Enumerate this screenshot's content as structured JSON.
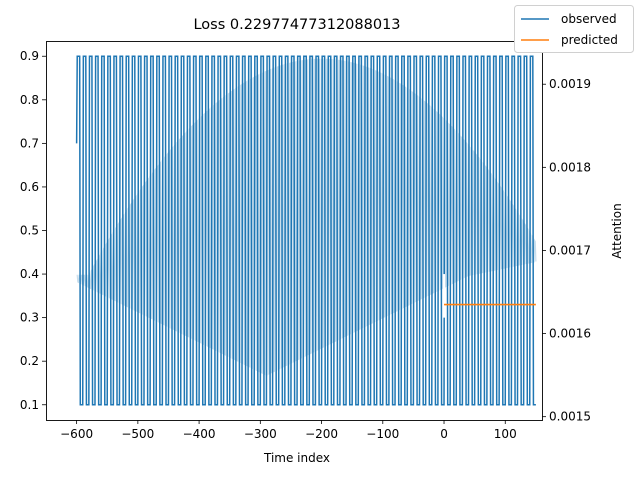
{
  "chart_data": {
    "type": "line",
    "title": "Loss 0.22977477312088013",
    "xlabel": "Time index",
    "ylabel": "",
    "y2label": "Attention",
    "xlim": [
      -650,
      160
    ],
    "ylim": [
      0.065,
      0.935
    ],
    "y2lim": [
      0.001496,
      0.001952
    ],
    "xticks": [
      -600,
      -500,
      -400,
      -300,
      -200,
      -100,
      0,
      100
    ],
    "yticks": [
      0.1,
      0.2,
      0.3,
      0.4,
      0.5,
      0.6,
      0.7,
      0.8,
      0.9
    ],
    "y2ticks": [
      0.0015,
      0.0016,
      0.0017,
      0.0018,
      0.0019
    ],
    "y2tick_labels": [
      "0.0015",
      "0.0016",
      "0.0017",
      "0.0018",
      "0.0019"
    ],
    "grid": false,
    "legend_position": "top-right",
    "series": [
      {
        "name": "observed",
        "color": "#1f77b4",
        "pattern": "alternating 0.9 / 0.1 with period 10 (rise at idx%10==1, fall at idx%10==6)",
        "x_range": [
          -600,
          150
        ],
        "high": 0.9,
        "low": 0.1,
        "period": 10,
        "start_value": 0.7
      },
      {
        "name": "predicted",
        "color": "#ff7f0e",
        "x_range": [
          0,
          150
        ],
        "constant_value": 0.33
      },
      {
        "name": "attention",
        "axis": "right",
        "color": "#1f77b4",
        "opacity": 0.25,
        "x_range": [
          -600,
          150
        ],
        "period": 4,
        "envelope": "elliptical band: lower edge min 0.00155 at x=-290, upper edge max 0.00193 at x=-200"
      }
    ]
  }
}
